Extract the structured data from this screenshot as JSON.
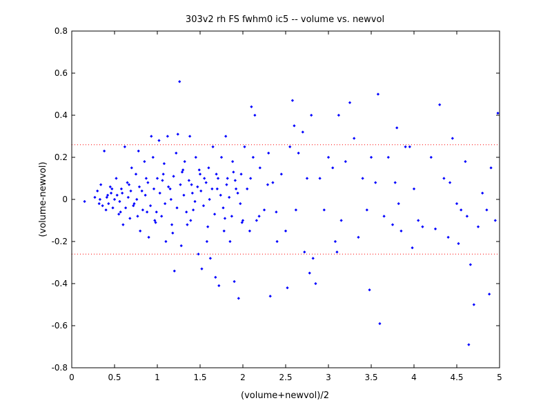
{
  "chart_data": {
    "type": "scatter",
    "title": "303v2 rh FS fwhm0 ic5 -- volume vs. newvol",
    "xlabel": "(volume+newvol)/2",
    "ylabel": "(volume-newvol)",
    "xlim": [
      0,
      5
    ],
    "ylim": [
      -0.8,
      0.8
    ],
    "x_ticks": [
      0,
      0.5,
      1,
      1.5,
      2,
      2.5,
      3,
      3.5,
      4,
      4.5,
      5
    ],
    "x_tick_labels": [
      "0",
      "0.5",
      "1",
      "1.5",
      "2",
      "2.5",
      "3",
      "3.5",
      "4",
      "4.5",
      "5"
    ],
    "y_ticks": [
      -0.8,
      -0.6,
      -0.4,
      -0.2,
      0,
      0.2,
      0.4,
      0.6,
      0.8
    ],
    "y_tick_labels": [
      "-0.8",
      "-0.6",
      "-0.4",
      "-0.2",
      "0",
      "0.2",
      "0.4",
      "0.6",
      "0.8"
    ],
    "grid": false,
    "reference_lines": [
      0.26,
      -0.26
    ],
    "colors": {
      "points": "#0000ff",
      "reference_lines": "#ff0000"
    },
    "series": [
      {
        "points": [
          [
            0.15,
            -0.01
          ],
          [
            0.27,
            0.01
          ],
          [
            0.3,
            0.04
          ],
          [
            0.32,
            -0.02
          ],
          [
            0.34,
            0.07
          ],
          [
            0.38,
            0.23
          ],
          [
            0.4,
            -0.05
          ],
          [
            0.42,
            0.02
          ],
          [
            0.45,
            0.06
          ],
          [
            0.48,
            -0.04
          ],
          [
            0.52,
            0.1
          ],
          [
            0.55,
            -0.07
          ],
          [
            0.58,
            0.05
          ],
          [
            0.6,
            -0.12
          ],
          [
            0.62,
            0.25
          ],
          [
            0.65,
            0.08
          ],
          [
            0.68,
            -0.09
          ],
          [
            0.7,
            0.15
          ],
          [
            0.72,
            -0.03
          ],
          [
            0.75,
            0.12
          ],
          [
            0.78,
            0.23
          ],
          [
            0.8,
            -0.15
          ],
          [
            0.82,
            0.04
          ],
          [
            0.85,
            0.18
          ],
          [
            0.88,
            -0.06
          ],
          [
            0.9,
            -0.18
          ],
          [
            0.93,
            0.3
          ],
          [
            0.95,
            0.2
          ],
          [
            0.98,
            -0.11
          ],
          [
            1.0,
            0.1
          ],
          [
            1.02,
            0.28
          ],
          [
            1.05,
            -0.08
          ],
          [
            1.08,
            0.17
          ],
          [
            1.1,
            -0.2
          ],
          [
            1.12,
            0.3
          ],
          [
            1.15,
            0.05
          ],
          [
            1.18,
            -0.16
          ],
          [
            1.2,
            -0.34
          ],
          [
            1.22,
            0.22
          ],
          [
            1.24,
            0.31
          ],
          [
            1.26,
            0.56
          ],
          [
            1.28,
            -0.22
          ],
          [
            1.3,
            0.14
          ],
          [
            1.32,
            0.18
          ],
          [
            1.35,
            -0.12
          ],
          [
            1.38,
            0.3
          ],
          [
            1.4,
            0.07
          ],
          [
            1.42,
            -0.05
          ],
          [
            1.45,
            0.2
          ],
          [
            1.48,
            -0.26
          ],
          [
            1.5,
            0.12
          ],
          [
            1.52,
            -0.33
          ],
          [
            1.55,
            0.1
          ],
          [
            1.58,
            -0.2
          ],
          [
            1.6,
            0.15
          ],
          [
            1.62,
            -0.28
          ],
          [
            1.65,
            0.25
          ],
          [
            1.68,
            -0.37
          ],
          [
            1.7,
            0.05
          ],
          [
            1.72,
            -0.41
          ],
          [
            1.75,
            0.2
          ],
          [
            1.78,
            -0.15
          ],
          [
            1.8,
            0.3
          ],
          [
            1.82,
            0.1
          ],
          [
            1.85,
            -0.2
          ],
          [
            1.88,
            0.18
          ],
          [
            1.9,
            -0.39
          ],
          [
            1.92,
            0.05
          ],
          [
            1.95,
            -0.47
          ],
          [
            1.98,
            0.12
          ],
          [
            2.0,
            -0.1
          ],
          [
            2.02,
            0.25
          ],
          [
            2.05,
            0.05
          ],
          [
            2.08,
            -0.15
          ],
          [
            2.1,
            0.44
          ],
          [
            2.12,
            0.2
          ],
          [
            2.14,
            0.4
          ],
          [
            2.16,
            -0.1
          ],
          [
            2.2,
            0.15
          ],
          [
            2.25,
            -0.05
          ],
          [
            2.3,
            0.22
          ],
          [
            2.32,
            -0.46
          ],
          [
            2.35,
            0.08
          ],
          [
            2.4,
            -0.2
          ],
          [
            2.45,
            0.12
          ],
          [
            2.5,
            -0.15
          ],
          [
            2.52,
            -0.42
          ],
          [
            2.55,
            0.25
          ],
          [
            2.58,
            0.47
          ],
          [
            2.6,
            0.35
          ],
          [
            2.62,
            -0.05
          ],
          [
            2.65,
            0.22
          ],
          [
            2.7,
            0.32
          ],
          [
            2.72,
            -0.25
          ],
          [
            2.75,
            0.1
          ],
          [
            2.78,
            -0.35
          ],
          [
            2.8,
            0.4
          ],
          [
            2.82,
            -0.28
          ],
          [
            2.85,
            -0.4
          ],
          [
            2.9,
            0.1
          ],
          [
            2.95,
            -0.05
          ],
          [
            3.0,
            0.2
          ],
          [
            3.05,
            0.15
          ],
          [
            3.08,
            -0.2
          ],
          [
            3.1,
            -0.25
          ],
          [
            3.12,
            0.4
          ],
          [
            3.15,
            -0.1
          ],
          [
            3.2,
            0.18
          ],
          [
            3.25,
            0.46
          ],
          [
            3.3,
            0.29
          ],
          [
            3.35,
            -0.18
          ],
          [
            3.4,
            0.1
          ],
          [
            3.45,
            -0.05
          ],
          [
            3.48,
            -0.43
          ],
          [
            3.5,
            0.2
          ],
          [
            3.55,
            0.08
          ],
          [
            3.58,
            0.5
          ],
          [
            3.6,
            -0.59
          ],
          [
            3.65,
            -0.08
          ],
          [
            3.7,
            0.2
          ],
          [
            3.75,
            -0.12
          ],
          [
            3.78,
            0.08
          ],
          [
            3.8,
            0.34
          ],
          [
            3.82,
            -0.02
          ],
          [
            3.85,
            -0.15
          ],
          [
            3.9,
            0.25
          ],
          [
            3.95,
            0.25
          ],
          [
            3.98,
            -0.23
          ],
          [
            4.0,
            0.05
          ],
          [
            4.05,
            -0.1
          ],
          [
            4.1,
            -0.13
          ],
          [
            4.2,
            0.2
          ],
          [
            4.25,
            -0.14
          ],
          [
            4.3,
            0.45
          ],
          [
            4.35,
            0.1
          ],
          [
            4.4,
            -0.18
          ],
          [
            4.42,
            0.08
          ],
          [
            4.45,
            0.29
          ],
          [
            4.5,
            -0.02
          ],
          [
            4.52,
            -0.21
          ],
          [
            4.55,
            -0.05
          ],
          [
            4.6,
            0.18
          ],
          [
            4.62,
            -0.08
          ],
          [
            4.64,
            -0.69
          ],
          [
            4.66,
            -0.31
          ],
          [
            4.7,
            -0.5
          ],
          [
            4.75,
            -0.13
          ],
          [
            4.8,
            0.03
          ],
          [
            4.85,
            -0.05
          ],
          [
            4.88,
            -0.45
          ],
          [
            4.9,
            0.15
          ],
          [
            4.95,
            -0.1
          ],
          [
            4.98,
            0.41
          ],
          [
            0.33,
            0.0
          ],
          [
            0.36,
            -0.03
          ],
          [
            0.41,
            0.01
          ],
          [
            0.43,
            -0.02
          ],
          [
            0.46,
            0.03
          ],
          [
            0.5,
            0.0
          ],
          [
            0.53,
            0.02
          ],
          [
            0.56,
            -0.01
          ],
          [
            0.59,
            0.03
          ],
          [
            0.63,
            -0.04
          ],
          [
            0.66,
            0.01
          ],
          [
            0.69,
            0.04
          ],
          [
            0.73,
            -0.02
          ],
          [
            0.76,
            0.0
          ],
          [
            0.79,
            0.06
          ],
          [
            0.83,
            -0.05
          ],
          [
            0.86,
            0.02
          ],
          [
            0.89,
            0.08
          ],
          [
            0.92,
            -0.03
          ],
          [
            0.96,
            0.05
          ],
          [
            0.99,
            -0.06
          ],
          [
            1.03,
            0.03
          ],
          [
            1.06,
            0.09
          ],
          [
            1.09,
            -0.02
          ],
          [
            1.13,
            0.06
          ],
          [
            1.16,
            0.0
          ],
          [
            1.19,
            0.11
          ],
          [
            1.23,
            -0.04
          ],
          [
            1.27,
            0.07
          ],
          [
            1.31,
            0.02
          ],
          [
            1.34,
            -0.06
          ],
          [
            1.37,
            0.09
          ],
          [
            1.41,
            0.03
          ],
          [
            1.44,
            -0.01
          ],
          [
            1.47,
            0.06
          ],
          [
            1.51,
            0.04
          ],
          [
            1.54,
            -0.03
          ],
          [
            1.57,
            0.08
          ],
          [
            1.61,
            0.0
          ],
          [
            1.64,
            0.05
          ],
          [
            1.67,
            -0.07
          ],
          [
            1.71,
            0.1
          ],
          [
            1.74,
            0.02
          ],
          [
            1.77,
            -0.04
          ],
          [
            1.81,
            0.07
          ],
          [
            1.84,
            0.01
          ],
          [
            1.87,
            -0.08
          ],
          [
            1.91,
            0.09
          ],
          [
            1.94,
            0.03
          ],
          [
            1.97,
            -0.02
          ],
          [
            0.47,
            0.05
          ],
          [
            0.57,
            -0.06
          ],
          [
            0.67,
            0.07
          ],
          [
            0.77,
            -0.08
          ],
          [
            0.87,
            0.1
          ],
          [
            0.97,
            -0.1
          ],
          [
            1.07,
            0.12
          ],
          [
            1.17,
            -0.12
          ],
          [
            1.29,
            0.13
          ],
          [
            1.39,
            -0.1
          ],
          [
            1.49,
            0.14
          ],
          [
            1.59,
            -0.13
          ],
          [
            1.69,
            0.12
          ],
          [
            1.79,
            -0.09
          ],
          [
            1.89,
            0.13
          ],
          [
            1.99,
            -0.11
          ],
          [
            2.09,
            0.1
          ],
          [
            2.19,
            -0.08
          ],
          [
            2.29,
            0.07
          ],
          [
            2.39,
            -0.06
          ]
        ]
      }
    ]
  }
}
